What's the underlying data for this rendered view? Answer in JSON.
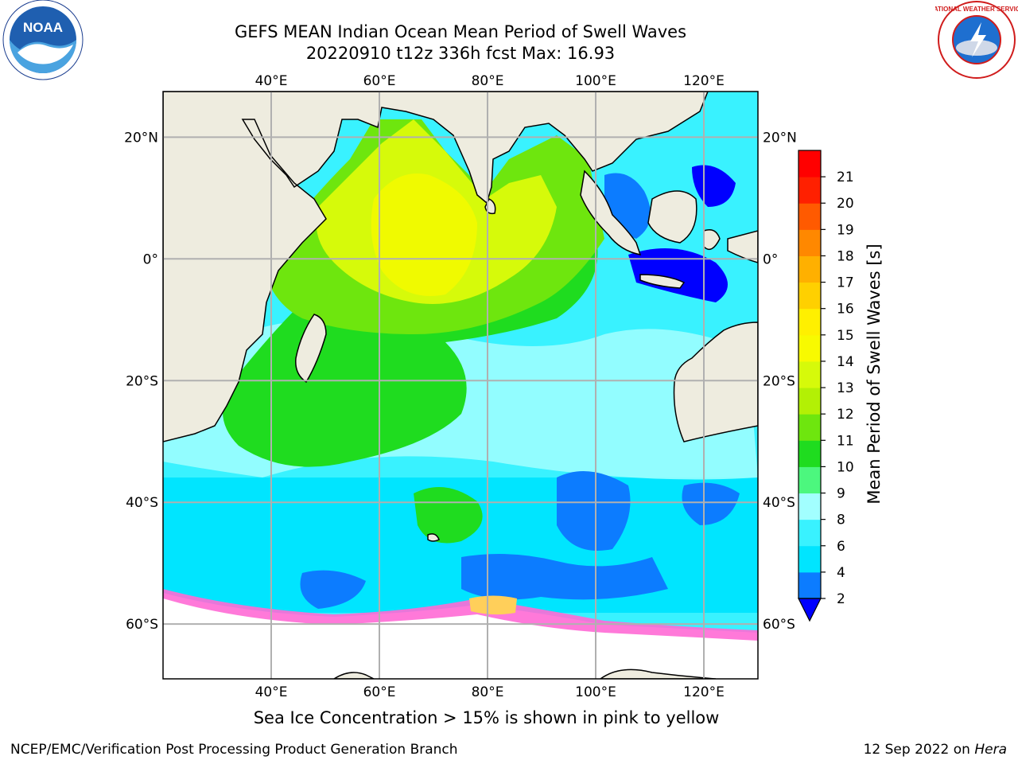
{
  "header": {
    "title_line1": "GEFS MEAN Indian Ocean Mean Period of Swell Waves",
    "title_line2": "20220910 t12z 336h fcst   Max: 16.93"
  },
  "map": {
    "lon_range": [
      20,
      130
    ],
    "lat_range": [
      -69,
      27.5
    ],
    "lon_ticks": [
      {
        "value": 40,
        "label": "40°E"
      },
      {
        "value": 60,
        "label": "60°E"
      },
      {
        "value": 80,
        "label": "80°E"
      },
      {
        "value": 100,
        "label": "100°E"
      },
      {
        "value": 120,
        "label": "120°E"
      }
    ],
    "lat_ticks": [
      {
        "value": 20,
        "label": "20°N"
      },
      {
        "value": 0,
        "label": "0°"
      },
      {
        "value": -20,
        "label": "20°S"
      },
      {
        "value": -40,
        "label": "40°S"
      },
      {
        "value": -60,
        "label": "60°S"
      }
    ],
    "grid": true,
    "colors": {
      "land": "#eeecdf",
      "grid": "#b0b0b0",
      "coast": "#000000"
    }
  },
  "colorbar": {
    "label": "Mean Period of Swell Waves [s]",
    "ticks": [
      "2",
      "4",
      "6",
      "8",
      "9",
      "10",
      "11",
      "12",
      "13",
      "14",
      "15",
      "16",
      "17",
      "18",
      "19",
      "20",
      "21"
    ],
    "colors": [
      "#0000ff",
      "#0c7cff",
      "#00e5ff",
      "#39f2ff",
      "#a2ffff",
      "#4cf77e",
      "#1fdc1f",
      "#6ee60e",
      "#b3f005",
      "#d6fa0a",
      "#f8fa00",
      "#fff000",
      "#ffd000",
      "#ffb000",
      "#ff8800",
      "#ff5a00",
      "#ff2000",
      "#ff0000"
    ],
    "extend": "min"
  },
  "footnote": "Sea Ice Concentration > 15% is shown in pink to yellow",
  "credits": {
    "left": "NCEP/EMC/Verification Post Processing Product Generation Branch",
    "right_prefix": "12 Sep 2022 on ",
    "right_machine": "Hera"
  },
  "logos": {
    "noaa_text": "NOAA",
    "nws_ring_text": "NATIONAL WEATHER SERVICE"
  }
}
